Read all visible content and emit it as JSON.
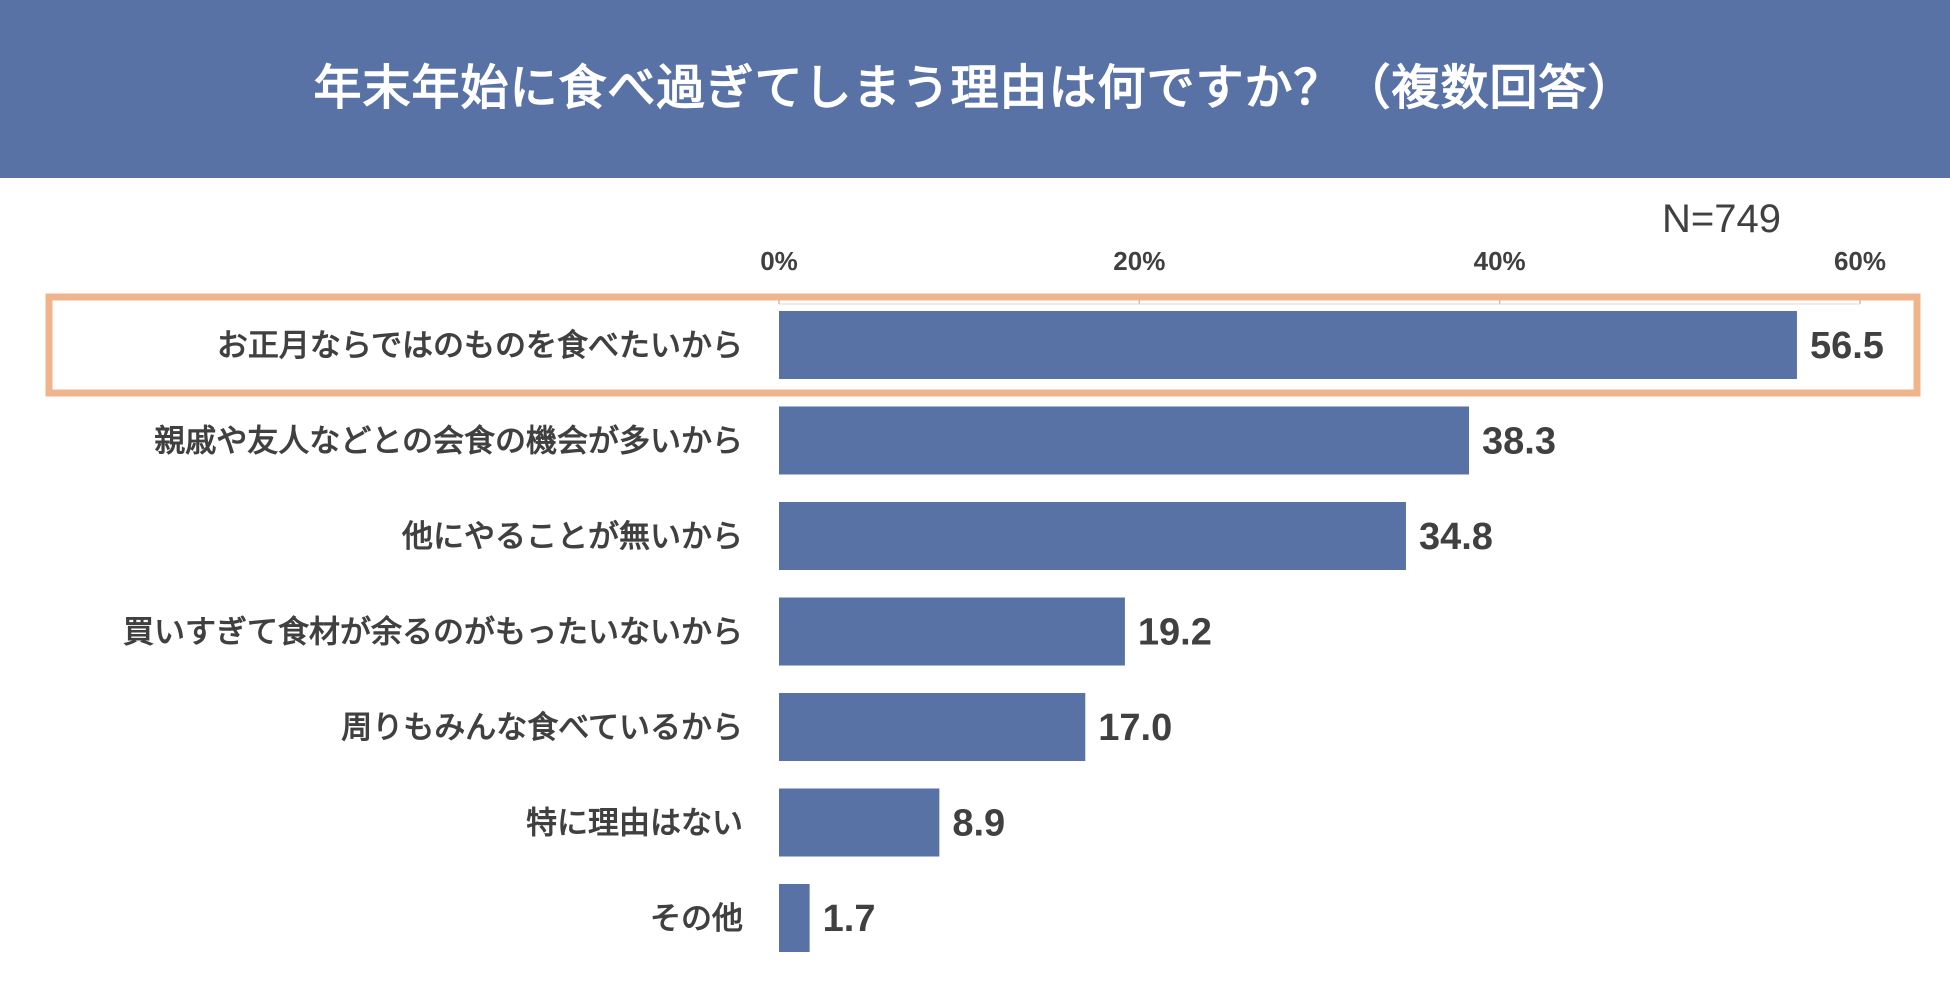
{
  "header": {
    "title": "年末年始に食べ過ぎてしまう理由は何ですか？（複数回答）"
  },
  "sample_size": "N=749",
  "colors": {
    "header_bg": "#5972a6",
    "bar": "#5972a6",
    "highlight_border": "#f0b48c",
    "text": "#404040"
  },
  "chart_data": {
    "type": "bar",
    "orientation": "horizontal",
    "title": "年末年始に食べ過ぎてしまう理由は何ですか？（複数回答）",
    "categories": [
      "お正月ならではのものを食べたいから",
      "親戚や友人などとの会食の機会が多いから",
      "他にやることが無いから",
      "買いすぎて食材が余るのがもったいないから",
      "周りもみんな食べているから",
      "特に理由はない",
      "その他"
    ],
    "values": [
      56.5,
      38.3,
      34.8,
      19.2,
      17.0,
      8.9,
      1.7
    ],
    "value_labels": [
      "56.5",
      "38.3",
      "34.8",
      "19.2",
      "17.0",
      "8.9",
      "1.7"
    ],
    "xlim": [
      0,
      60
    ],
    "ticks": [
      0,
      20,
      40,
      60
    ],
    "tick_labels": [
      "0%",
      "20%",
      "40%",
      "60%"
    ],
    "highlighted_category": "お正月ならではのものを食べたいから",
    "grid": false,
    "legend": "none"
  }
}
